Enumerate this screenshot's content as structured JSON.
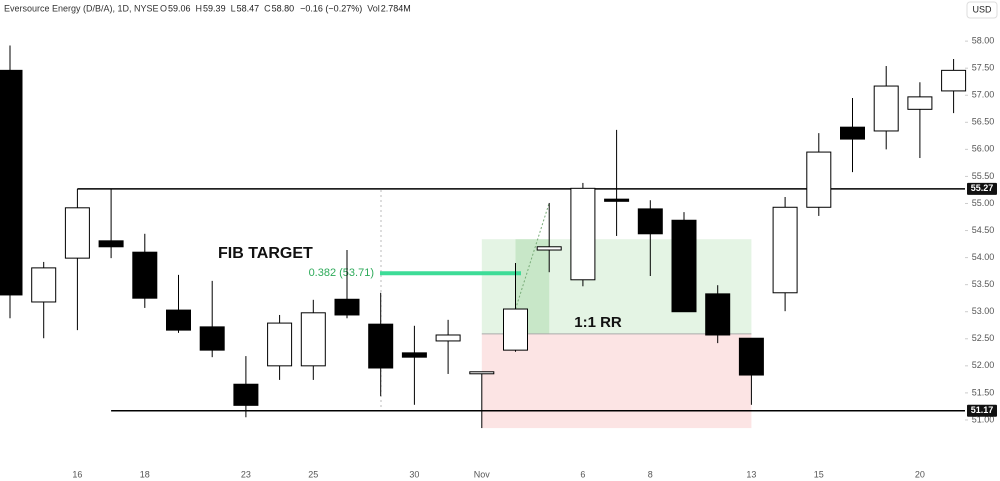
{
  "chart_data": {
    "type": "candlestick",
    "header": {
      "symbol": "Eversource Energy (D/B/A), 1D, NYSE",
      "items": [
        [
          "O",
          "59.06"
        ],
        [
          "H",
          "59.39"
        ],
        [
          "L",
          "58.47"
        ],
        [
          "C",
          "58.80"
        ],
        [
          "",
          "−0.16 (−0.27%)"
        ],
        [
          "Vol",
          "2.784M"
        ]
      ],
      "currency": "USD"
    },
    "categories": [
      null,
      null,
      "16",
      null,
      "18",
      null,
      null,
      "23",
      null,
      "25",
      null,
      null,
      "30",
      null,
      "Nov",
      null,
      null,
      "6",
      null,
      "8",
      null,
      null,
      "13",
      null,
      "15",
      null,
      null,
      "20",
      null
    ],
    "open": [
      57.46,
      53.18,
      53.99,
      54.31,
      54.1,
      53.03,
      52.72,
      51.66,
      52.0,
      52.0,
      53.23,
      52.77,
      52.24,
      52.46,
      51.89,
      52.29,
      54.14,
      53.59,
      55.08,
      54.9,
      54.69,
      53.33,
      52.51,
      53.35,
      54.93,
      56.41,
      56.34,
      56.74,
      57.08
    ],
    "high": [
      57.92,
      53.92,
      55.27,
      55.27,
      54.44,
      53.68,
      53.57,
      52.18,
      52.94,
      53.22,
      54.14,
      53.35,
      52.74,
      52.85,
      51.89,
      53.9,
      55.01,
      55.38,
      56.36,
      55.06,
      54.84,
      53.49,
      52.51,
      55.12,
      56.3,
      56.95,
      57.54,
      57.24,
      57.67
    ],
    "low": [
      52.88,
      52.51,
      52.66,
      53.99,
      53.07,
      52.61,
      52.16,
      51.05,
      51.74,
      51.74,
      52.88,
      51.44,
      51.28,
      51.85,
      50.85,
      52.26,
      53.73,
      53.47,
      54.4,
      53.66,
      53.0,
      52.42,
      51.28,
      53.01,
      54.77,
      55.58,
      56.0,
      55.84,
      56.67
    ],
    "close": [
      53.31,
      53.81,
      54.92,
      54.2,
      53.25,
      52.66,
      52.29,
      51.27,
      52.79,
      52.98,
      52.94,
      51.96,
      52.16,
      52.57,
      51.89,
      53.05,
      54.2,
      55.28,
      55.04,
      54.44,
      53.0,
      52.57,
      51.83,
      54.93,
      55.95,
      56.19,
      57.17,
      56.97,
      57.46
    ],
    "up_color": "#ffffff",
    "down_color": "#000000",
    "ylim": [
      50.26,
      58.76
    ],
    "yticks": [
      {
        "value": 51,
        "label": "51.00"
      },
      {
        "value": 51.5,
        "label": "51.50"
      },
      {
        "value": 52,
        "label": "52.00"
      },
      {
        "value": 52.5,
        "label": "52.50"
      },
      {
        "value": 53,
        "label": "53.00"
      },
      {
        "value": 53.5,
        "label": "53.50"
      },
      {
        "value": 54,
        "label": "54.00"
      },
      {
        "value": 54.5,
        "label": "54.50"
      },
      {
        "value": 55,
        "label": "55.00"
      },
      {
        "value": 55.5,
        "label": "55.50"
      },
      {
        "value": 56,
        "label": "56.00"
      },
      {
        "value": 56.5,
        "label": "56.50"
      },
      {
        "value": 57,
        "label": "57.00"
      },
      {
        "value": 57.5,
        "label": "57.50"
      },
      {
        "value": 58,
        "label": "58.00"
      }
    ],
    "hlines": [
      55.27,
      51.17
    ],
    "fib": {
      "title": "FIB TARGET",
      "label": "0.382 (53.71)",
      "value": 53.71,
      "color": "#3ddc97"
    },
    "position": {
      "label": "1:1 RR",
      "target": 54.34,
      "entry": 52.59,
      "stop": 50.85
    }
  }
}
